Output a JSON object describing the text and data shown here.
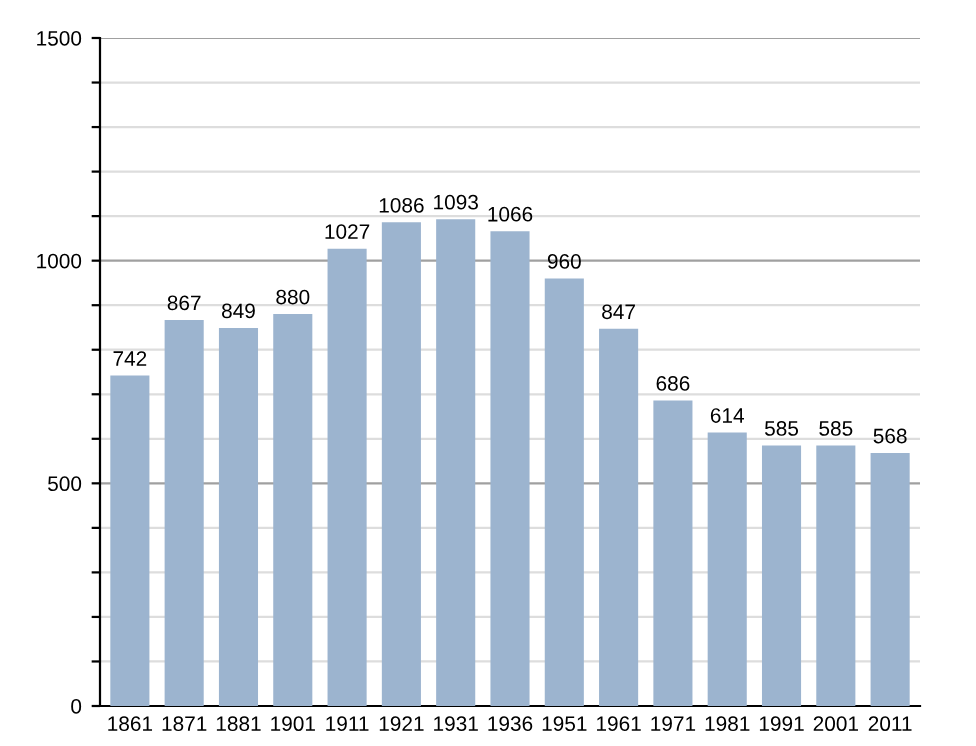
{
  "chart_data": {
    "type": "bar",
    "categories": [
      "1861",
      "1871",
      "1881",
      "1901",
      "1911",
      "1921",
      "1931",
      "1936",
      "1951",
      "1961",
      "1971",
      "1981",
      "1991",
      "2001",
      "2011"
    ],
    "values": [
      742,
      867,
      849,
      880,
      1027,
      1086,
      1093,
      1066,
      960,
      847,
      686,
      614,
      585,
      585,
      568
    ],
    "color": "#9cb4cf",
    "ylim": [
      0,
      1500
    ],
    "yticks": [
      0,
      {
        "value": 100,
        "label": null
      },
      {
        "value": 200,
        "label": null
      },
      {
        "value": 300,
        "label": null
      },
      {
        "value": 400,
        "label": null
      },
      500,
      {
        "value": 600,
        "label": null
      },
      {
        "value": 700,
        "label": null
      },
      {
        "value": 800,
        "label": null
      },
      {
        "value": 900,
        "label": null
      },
      1000,
      {
        "value": 1100,
        "label": null
      },
      {
        "value": 1200,
        "label": null
      },
      {
        "value": 1300,
        "label": null
      },
      {
        "value": 1400,
        "label": null
      },
      1500
    ],
    "grid": "y",
    "data_labels": true
  }
}
